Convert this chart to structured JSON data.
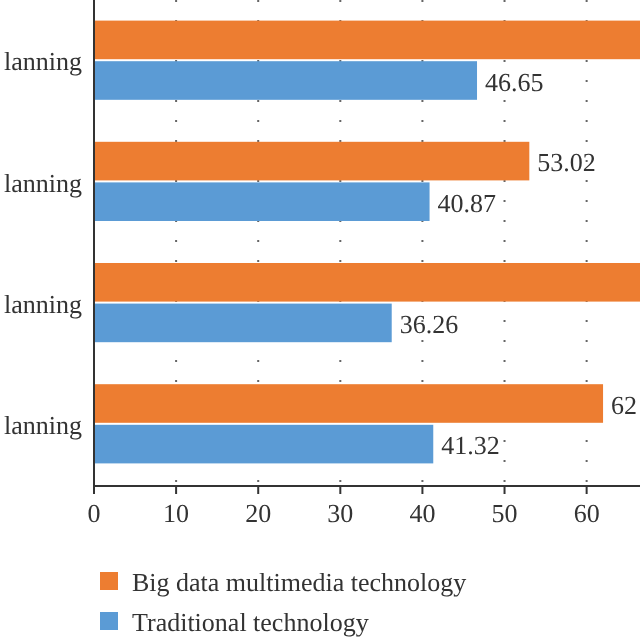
{
  "chart_data": {
    "type": "bar",
    "orientation": "horizontal",
    "categories": [
      "lanning",
      "lanning",
      "lanning",
      "lanning"
    ],
    "series": [
      {
        "name": "Big data multimedia technology",
        "color": "#ed7d31",
        "values": [
          66.5,
          53.02,
          66.5,
          62
        ],
        "value_labels": [
          null,
          "53.02",
          null,
          "62"
        ]
      },
      {
        "name": "Traditional technology",
        "color": "#5b9bd5",
        "values": [
          46.65,
          40.87,
          36.26,
          41.32
        ],
        "value_labels": [
          "46.65",
          "40.87",
          "36.26",
          "41.32"
        ]
      }
    ],
    "xlim": [
      0,
      66.5
    ],
    "xticks": [
      0,
      10,
      20,
      30,
      40,
      50,
      60
    ],
    "grid": "x",
    "legend": "bottom"
  }
}
